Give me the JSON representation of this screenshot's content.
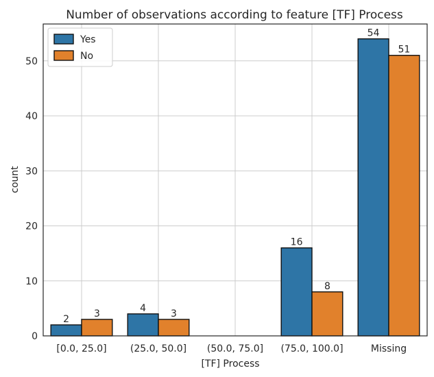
{
  "chart_data": {
    "type": "bar",
    "title": "Number of observations according to feature [TF] Process",
    "xlabel": "[TF] Process",
    "ylabel": "count",
    "categories": [
      "[0.0, 25.0]",
      "(25.0, 50.0]",
      "(50.0, 75.0]",
      "(75.0, 100.0]",
      "Missing"
    ],
    "series": [
      {
        "name": "Yes",
        "values": [
          2,
          4,
          0,
          16,
          54
        ],
        "color": "#2e75a6"
      },
      {
        "name": "No",
        "values": [
          3,
          3,
          0,
          8,
          51
        ],
        "color": "#e1812c"
      }
    ],
    "data_labels": [
      [
        "2",
        "4",
        "",
        "16",
        "54"
      ],
      [
        "3",
        "3",
        "",
        "8",
        "51"
      ]
    ],
    "ylim": [
      0,
      56.7
    ],
    "yticks": [
      0,
      10,
      20,
      30,
      40,
      50
    ],
    "grid": true,
    "legend_position": "top-left"
  }
}
